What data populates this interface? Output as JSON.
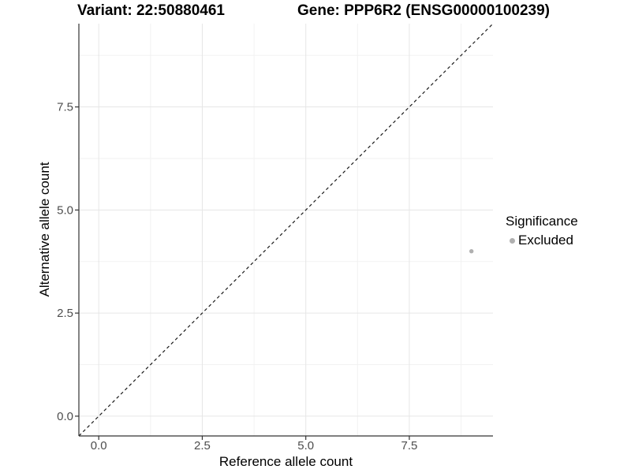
{
  "figure": {
    "title_variant": "Variant: 22:50880461",
    "title_gene": "Gene: PPP6R2 (ENSG00000100239)"
  },
  "chart_data": {
    "type": "scatter",
    "title_left": "Variant: 22:50880461",
    "title_right": "Gene: PPP6R2 (ENSG00000100239)",
    "xlabel": "Reference allele count",
    "ylabel": "Alternative allele count",
    "xlim": [
      -0.48,
      9.52
    ],
    "ylim": [
      -0.48,
      9.52
    ],
    "x_ticks": {
      "values": [
        0,
        2.5,
        5,
        7.5
      ],
      "labels": [
        "0.0",
        "2.5",
        "5.0",
        "7.5"
      ]
    },
    "y_ticks": {
      "values": [
        0,
        2.5,
        5,
        7.5
      ],
      "labels": [
        "0.0",
        "2.5",
        "5.0",
        "7.5"
      ]
    },
    "x_minor_ticks": [
      1.25,
      3.75,
      6.25,
      8.75
    ],
    "y_minor_ticks": [
      1.25,
      3.75,
      6.25,
      8.75
    ],
    "grid": true,
    "reference_line": {
      "type": "identity",
      "slope": 1,
      "intercept": 0,
      "style": "dashed",
      "color": "#1a1a1a"
    },
    "series": [
      {
        "name": "Excluded",
        "color": "#b0b0b0",
        "point_radius": 2.7,
        "points": [
          {
            "x": 9,
            "y": 4
          }
        ]
      }
    ],
    "legend": {
      "title": "Significance",
      "position": "right",
      "entries": [
        {
          "label": "Excluded",
          "color": "#b0b0b0"
        }
      ]
    },
    "colors": {
      "major_grid": "#e6e6e6",
      "minor_grid": "#f2f2f2",
      "axis_line": "#333333",
      "tick_label": "#4d4d4d",
      "panel_background": "#ffffff"
    }
  }
}
